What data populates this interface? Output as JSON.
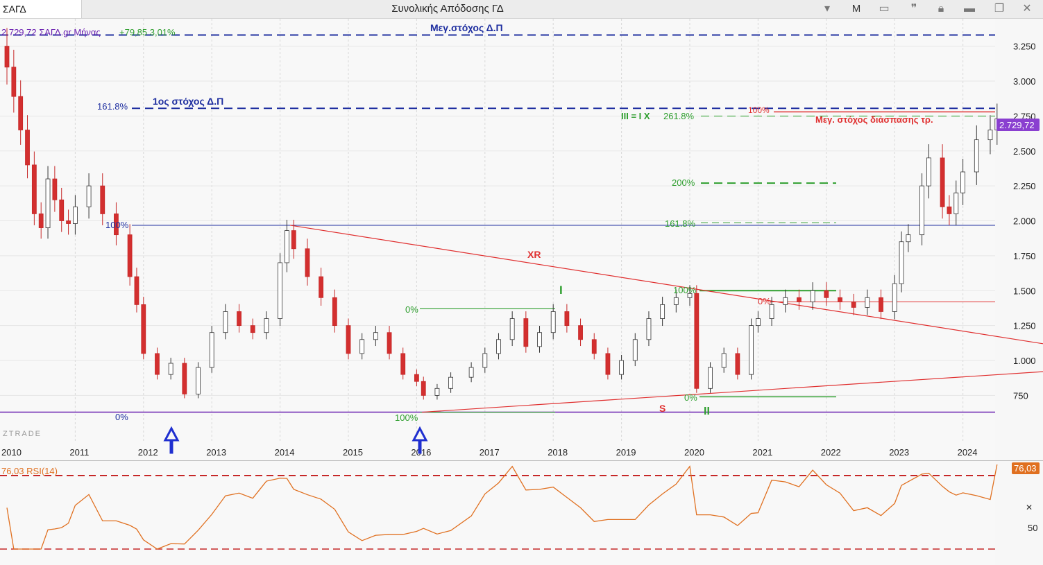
{
  "window": {
    "symbol": "ΣΑΓΔ",
    "title": "Συνολικής Απόδοσης ΓΔ",
    "mode_button": "M"
  },
  "quote": {
    "header": "2.729,72 ΣΑΓΔ.gr Μήνας",
    "change": "+79,85 3,01%",
    "overlap_pct": "200%"
  },
  "price_axis": {
    "ticks": [
      "3.250",
      "3.000",
      "2.750",
      "2.500",
      "2.250",
      "2.000",
      "1.750",
      "1.500",
      "1.250",
      "1.000",
      "750"
    ],
    "last_price": "2.729,72"
  },
  "time_axis": {
    "years": [
      "2010",
      "2011",
      "2012",
      "2013",
      "2014",
      "2015",
      "2016",
      "2017",
      "2018",
      "2019",
      "2020",
      "2021",
      "2022",
      "2023",
      "2024"
    ]
  },
  "annotations": {
    "max_target_dp": "Μεγ.στόχος Δ.Π",
    "first_target_dp": "1ος στόχος Δ.Π",
    "fib_161_left": "161.8%",
    "fib_100_left": "100%",
    "fib_0_left": "0%",
    "max_target_break": "Μεγ. στόχος διάσπασης τρ.",
    "red_100": "100%",
    "iii_ix": "III = I X",
    "fib_261": "261.8%",
    "fib_200": "200%",
    "fib_161_right": "161.8%",
    "wave_I": "I",
    "wave_II": "II",
    "xr": "XR",
    "s": "S",
    "g_0": "0%",
    "g_100_2016": "100%",
    "g_100_2020": "100%",
    "r_0_2021": "0%",
    "g_0_2020": "0%",
    "watermark": "ZTRADE"
  },
  "rsi": {
    "label": "76,03 RSI(14)",
    "value": "76,03",
    "tick_50": "50"
  },
  "colors": {
    "up": "#ffffff",
    "down": "#d32f2f",
    "fib_green": "#2e9e2e",
    "target_blue": "#1f2fa0",
    "trend_red": "#e03030",
    "purple": "#6a1fb0",
    "rsi": "#e07020"
  },
  "chart_data": {
    "type": "candlestick",
    "title": "Συνολικής Απόδοσης ΓΔ",
    "interval": "Μήνας",
    "ylim": [
      600,
      3380
    ],
    "xlim": [
      2010,
      2024.8
    ],
    "closes": [
      [
        2010.0,
        3100
      ],
      [
        2010.1,
        2890
      ],
      [
        2010.2,
        2650
      ],
      [
        2010.3,
        2400
      ],
      [
        2010.4,
        2050
      ],
      [
        2010.5,
        1950
      ],
      [
        2010.6,
        2300
      ],
      [
        2010.7,
        2150
      ],
      [
        2010.8,
        2000
      ],
      [
        2010.9,
        1980
      ],
      [
        2011.0,
        2100
      ],
      [
        2011.2,
        2250
      ],
      [
        2011.4,
        2050
      ],
      [
        2011.6,
        1900
      ],
      [
        2011.8,
        1600
      ],
      [
        2011.9,
        1400
      ],
      [
        2012.0,
        1050
      ],
      [
        2012.2,
        900
      ],
      [
        2012.4,
        980
      ],
      [
        2012.6,
        760
      ],
      [
        2012.8,
        950
      ],
      [
        2013.0,
        1200
      ],
      [
        2013.2,
        1350
      ],
      [
        2013.4,
        1250
      ],
      [
        2013.6,
        1200
      ],
      [
        2013.8,
        1300
      ],
      [
        2014.0,
        1700
      ],
      [
        2014.1,
        1930
      ],
      [
        2014.2,
        1800
      ],
      [
        2014.4,
        1600
      ],
      [
        2014.6,
        1450
      ],
      [
        2014.8,
        1250
      ],
      [
        2015.0,
        1050
      ],
      [
        2015.2,
        1150
      ],
      [
        2015.4,
        1200
      ],
      [
        2015.6,
        1050
      ],
      [
        2015.8,
        900
      ],
      [
        2016.0,
        850
      ],
      [
        2016.1,
        750
      ],
      [
        2016.3,
        800
      ],
      [
        2016.5,
        880
      ],
      [
        2016.8,
        950
      ],
      [
        2017.0,
        1050
      ],
      [
        2017.2,
        1150
      ],
      [
        2017.4,
        1300
      ],
      [
        2017.6,
        1100
      ],
      [
        2017.8,
        1200
      ],
      [
        2018.0,
        1350
      ],
      [
        2018.2,
        1250
      ],
      [
        2018.4,
        1150
      ],
      [
        2018.6,
        1050
      ],
      [
        2018.8,
        900
      ],
      [
        2019.0,
        1000
      ],
      [
        2019.2,
        1150
      ],
      [
        2019.4,
        1300
      ],
      [
        2019.6,
        1400
      ],
      [
        2019.8,
        1450
      ],
      [
        2020.0,
        1480
      ],
      [
        2020.1,
        800
      ],
      [
        2020.3,
        950
      ],
      [
        2020.5,
        1050
      ],
      [
        2020.7,
        900
      ],
      [
        2020.9,
        1250
      ],
      [
        2021.0,
        1300
      ],
      [
        2021.2,
        1400
      ],
      [
        2021.4,
        1450
      ],
      [
        2021.6,
        1420
      ],
      [
        2021.8,
        1500
      ],
      [
        2022.0,
        1450
      ],
      [
        2022.2,
        1420
      ],
      [
        2022.4,
        1380
      ],
      [
        2022.6,
        1450
      ],
      [
        2022.8,
        1350
      ],
      [
        2023.0,
        1550
      ],
      [
        2023.1,
        1850
      ],
      [
        2023.2,
        1900
      ],
      [
        2023.4,
        2250
      ],
      [
        2023.5,
        2450
      ],
      [
        2023.7,
        2100
      ],
      [
        2023.8,
        2050
      ],
      [
        2023.9,
        2200
      ],
      [
        2024.0,
        2350
      ],
      [
        2024.2,
        2580
      ],
      [
        2024.4,
        2650
      ],
      [
        2024.5,
        2729.72
      ]
    ],
    "price_ticks": [
      3250,
      3000,
      2750,
      2500,
      2250,
      2000,
      1750,
      1500,
      1250,
      1000,
      750
    ],
    "rsi_last": 76.03
  }
}
